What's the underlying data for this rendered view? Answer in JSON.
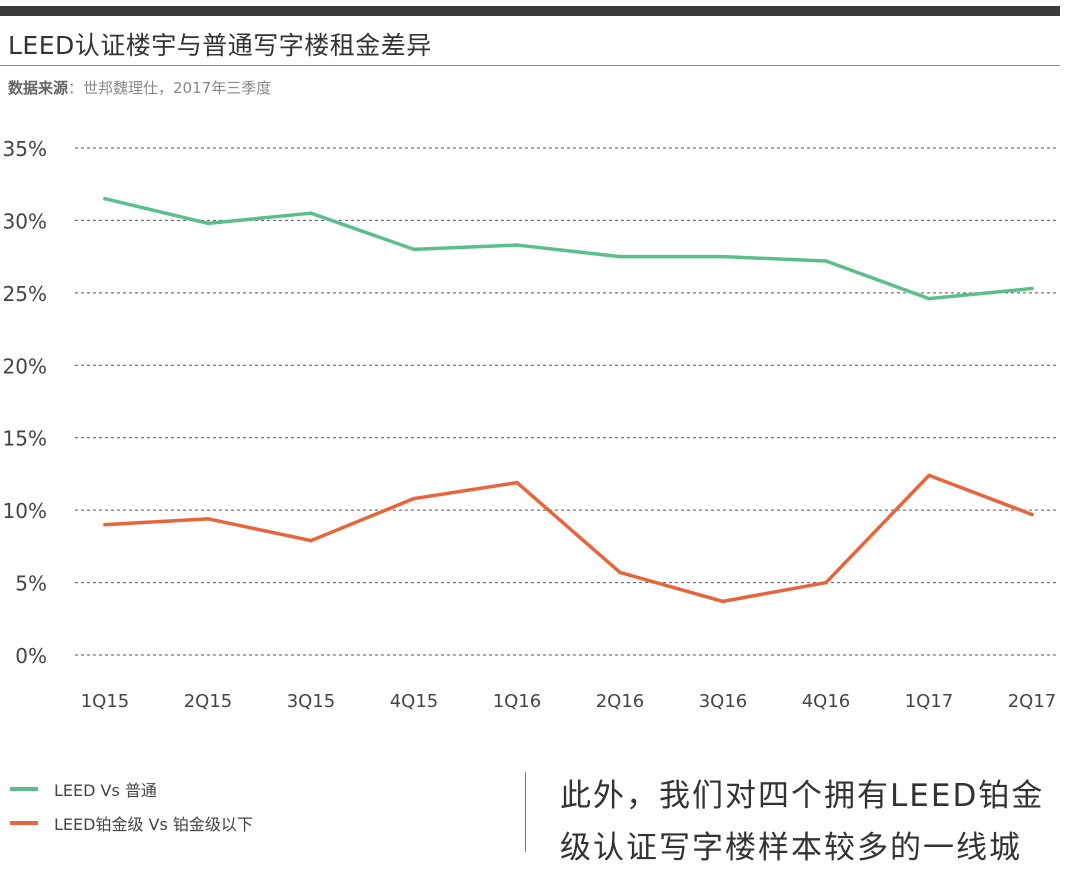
{
  "header": {
    "title": "LEED认证楼宇与普通写字楼租金差异",
    "source_label": "数据来源",
    "source_text": "：世邦魏理仕，2017年三季度"
  },
  "chart_data": {
    "type": "line",
    "title": "LEED认证楼宇与普通写字楼租金差异",
    "categories": [
      "1Q15",
      "2Q15",
      "3Q15",
      "4Q15",
      "1Q16",
      "2Q16",
      "3Q16",
      "4Q16",
      "1Q17",
      "2Q17"
    ],
    "y_ticks": [
      "0%",
      "5%",
      "10%",
      "15%",
      "20%",
      "25%",
      "30%",
      "35%"
    ],
    "ylim": [
      0,
      35
    ],
    "y_unit": "%",
    "grid": true,
    "legend_position": "bottom-left",
    "series": [
      {
        "name": "LEED  Vs  普通",
        "color": "#5bbf8c",
        "values": [
          31.5,
          29.8,
          30.5,
          28.0,
          28.3,
          27.5,
          27.5,
          27.2,
          24.6,
          25.3
        ]
      },
      {
        "name": "LEED铂金级  Vs  铂金级以下",
        "color": "#e8643a",
        "values": [
          9.0,
          9.4,
          7.9,
          10.8,
          11.9,
          5.7,
          3.7,
          5.0,
          12.4,
          9.7
        ]
      }
    ]
  },
  "legend": {
    "items": [
      {
        "label": "LEED  Vs  普通",
        "color": "#5bbf8c"
      },
      {
        "label": "LEED铂金级  Vs  铂金级以下",
        "color": "#e8643a"
      }
    ]
  },
  "body_text": {
    "line1": "此外，我们对四个拥有LEED铂金",
    "line2": "级认证写字楼样本较多的一线城"
  }
}
